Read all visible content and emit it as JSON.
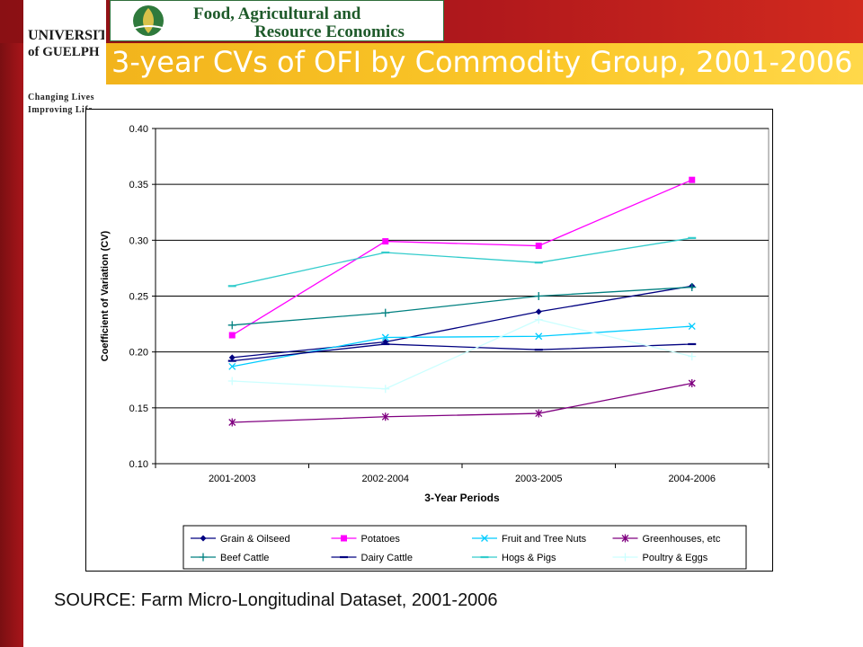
{
  "header": {
    "university_name_line1": "UNIVERSITY",
    "university_name_line2": "of GUELPH",
    "tagline_line1": "Changing Lives",
    "tagline_line2": "Improving Life",
    "department_line1": "Food, Agricultural and",
    "department_line2": "Resource Economics"
  },
  "slide": {
    "title": "3-year CVs of OFI by Commodity Group, 2001-2006",
    "source": "SOURCE: Farm Micro-Longitudinal Dataset, 2001-2006"
  },
  "colors": {
    "brand_red": "#a8151a",
    "brand_gold": "#fbc82a",
    "brand_green": "#1e5a2a"
  },
  "chart_data": {
    "type": "line",
    "title": "",
    "xlabel": "3-Year Periods",
    "ylabel": "Coefficient of Variation (CV)",
    "ylim": [
      0.1,
      0.4
    ],
    "yticks": [
      "0.10",
      "0.15",
      "0.20",
      "0.25",
      "0.30",
      "0.35",
      "0.40"
    ],
    "grid": true,
    "legend_position": "bottom",
    "categories": [
      "2001-2003",
      "2002-2004",
      "2003-2005",
      "2004-2006"
    ],
    "series": [
      {
        "name": "Grain & Oilseed",
        "color": "#000080",
        "marker": "diamond",
        "values": [
          0.195,
          0.209,
          0.236,
          0.259
        ]
      },
      {
        "name": "Potatoes",
        "color": "#ff00ff",
        "marker": "square",
        "values": [
          0.215,
          0.299,
          0.295,
          0.354
        ]
      },
      {
        "name": "Fruit and Tree Nuts",
        "color": "#00ccff",
        "marker": "x",
        "values": [
          0.187,
          0.213,
          0.214,
          0.223
        ]
      },
      {
        "name": "Greenhouses, etc",
        "color": "#800080",
        "marker": "star",
        "values": [
          0.137,
          0.142,
          0.145,
          0.172
        ]
      },
      {
        "name": "Beef Cattle",
        "color": "#008080",
        "marker": "plus",
        "values": [
          0.224,
          0.235,
          0.25,
          0.258
        ]
      },
      {
        "name": "Dairy Cattle",
        "color": "#000080",
        "marker": "dash",
        "values": [
          0.192,
          0.207,
          0.202,
          0.207
        ]
      },
      {
        "name": "Hogs & Pigs",
        "color": "#33cccc",
        "marker": "dash",
        "values": [
          0.259,
          0.289,
          0.28,
          0.302
        ]
      },
      {
        "name": "Poultry & Eggs",
        "color": "#ccffff",
        "marker": "plus",
        "values": [
          0.174,
          0.167,
          0.229,
          0.196
        ]
      }
    ]
  }
}
